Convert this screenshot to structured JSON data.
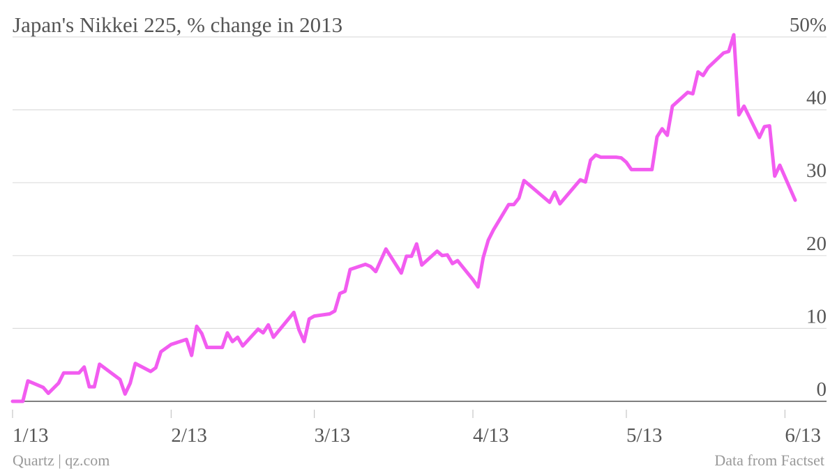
{
  "chart_data": {
    "type": "line",
    "title": "Japan's Nikkei 225, % change in 2013",
    "credit": "Quartz | qz.com",
    "source": "Data from Factset",
    "x": [
      0,
      2,
      3,
      6,
      7,
      9,
      10,
      13,
      14,
      15,
      16,
      17,
      21,
      22,
      23,
      24,
      27,
      28,
      29,
      30,
      31,
      34,
      35,
      36,
      37,
      38,
      41,
      42,
      43,
      44,
      45,
      48,
      49,
      50,
      51,
      55,
      56,
      57,
      58,
      59,
      62,
      63,
      64,
      65,
      66,
      69,
      70,
      71,
      73,
      76,
      77,
      78,
      79,
      80,
      83,
      84,
      85,
      86,
      87,
      90,
      91,
      92,
      93,
      94,
      97,
      98,
      99,
      100,
      105,
      106,
      107,
      111,
      112,
      113,
      114,
      115,
      118,
      119,
      120,
      121,
      125,
      126,
      127,
      128,
      129,
      132,
      133,
      134,
      135,
      136,
      139,
      140,
      141,
      142,
      143,
      146,
      147,
      148,
      149,
      150,
      153
    ],
    "series": [
      {
        "name": "Nikkei 225",
        "color": "#f25cf0",
        "values": [
          0,
          0,
          2.8,
          1.9,
          1.1,
          2.5,
          3.9,
          3.9,
          4.7,
          2.0,
          2.0,
          5.1,
          3.0,
          1.0,
          2.5,
          5.2,
          4.1,
          4.6,
          6.8,
          7.3,
          7.8,
          8.5,
          6.3,
          10.3,
          9.3,
          7.4,
          7.4,
          9.4,
          8.2,
          8.8,
          7.6,
          9.9,
          9.4,
          10.5,
          8.8,
          12.2,
          9.8,
          8.2,
          11.3,
          11.7,
          12.0,
          12.4,
          14.8,
          15.1,
          18.1,
          18.8,
          18.5,
          17.8,
          20.9,
          17.6,
          19.9,
          19.9,
          21.6,
          18.7,
          20.6,
          20.0,
          20.1,
          18.9,
          19.3,
          16.7,
          15.7,
          19.7,
          22.1,
          23.5,
          27.0,
          27.0,
          27.9,
          30.3,
          27.3,
          28.7,
          27.1,
          30.4,
          30.1,
          33.1,
          33.8,
          33.5,
          33.5,
          33.4,
          32.8,
          31.8,
          31.8,
          36.3,
          37.4,
          36.5,
          40.5,
          42.4,
          42.2,
          45.2,
          44.7,
          45.8,
          47.8,
          48.0,
          50.3,
          39.3,
          40.5,
          36.2,
          37.7,
          37.8,
          30.9,
          32.4,
          27.6
        ]
      }
    ],
    "xlim": [
      0,
      159
    ],
    "xticks": [
      {
        "value": 0,
        "label": "1/13"
      },
      {
        "value": 31,
        "label": "2/13"
      },
      {
        "value": 59,
        "label": "3/13"
      },
      {
        "value": 90,
        "label": "4/13"
      },
      {
        "value": 120,
        "label": "5/13"
      },
      {
        "value": 151,
        "label": "6/13"
      }
    ],
    "ylim": [
      0,
      50
    ],
    "yticks": [
      0,
      10,
      20,
      30,
      40,
      {
        "value": 50,
        "label": "50%"
      }
    ],
    "grid": true
  }
}
